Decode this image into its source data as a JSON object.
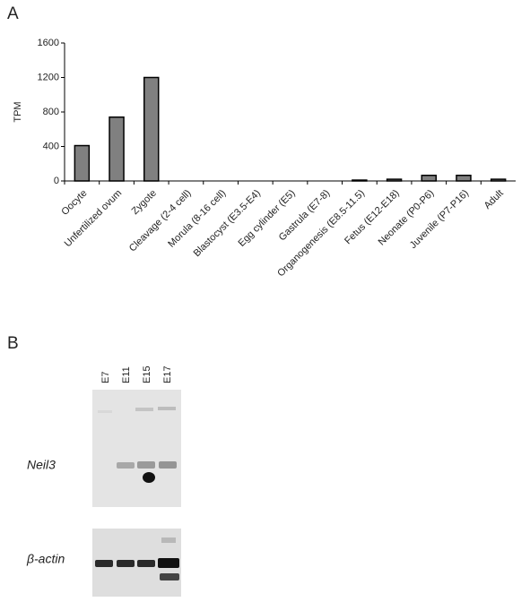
{
  "panels": {
    "a": "A",
    "b": "B"
  },
  "chart_data": {
    "type": "bar",
    "y_label": "TPM",
    "categories": [
      "Oocyte",
      "Unfertilized ovum",
      "Zygote",
      "Cleavage (2-4 cell)",
      "Morula (8-16 cell)",
      "Blastocyst (E3.5-E4)",
      "Egg cylinder (E5)",
      "Gastrula (E7-8)",
      "Organogenesis (E8.5-11.5)",
      "Fetus (E12-E18)",
      "Neonate (P0-P6)",
      "Juvenile (P7-P16)",
      "Adult"
    ],
    "values": [
      410,
      740,
      1200,
      0,
      0,
      0,
      0,
      0,
      10,
      20,
      65,
      65,
      20
    ],
    "color": "#808080",
    "ylim": [
      0,
      1600
    ],
    "yticks": [
      0,
      400,
      800,
      1200,
      1600
    ],
    "grid": false
  },
  "blot": {
    "lanes": [
      "E7",
      "E11",
      "E15",
      "E17"
    ],
    "gene": "Neil3",
    "control": "β-actin"
  }
}
